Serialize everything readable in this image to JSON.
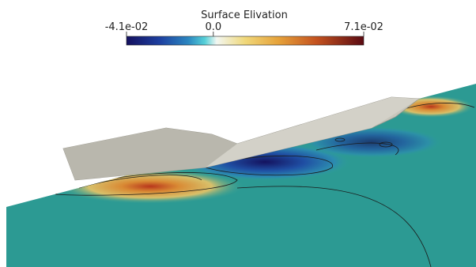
{
  "colorbar": {
    "title": "Surface Elivation",
    "range": [
      -0.041,
      0.071
    ],
    "ticks": [
      {
        "value": -0.041,
        "label": "-4.1e-02"
      },
      {
        "value": 0,
        "label": "0.0"
      },
      {
        "value": 0.071,
        "label": "7.1e-02"
      }
    ]
  }
}
